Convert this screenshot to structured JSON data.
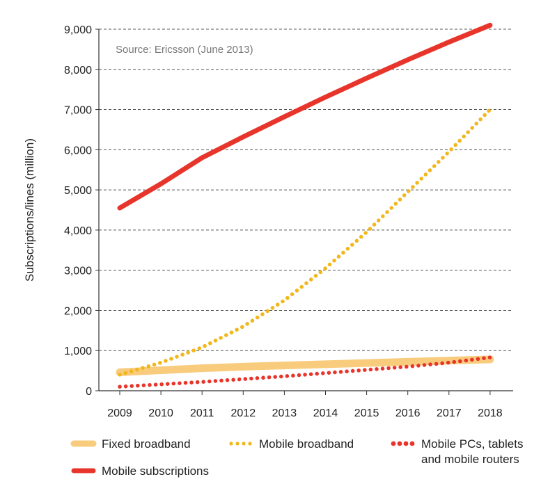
{
  "chart_data": {
    "type": "line",
    "source_note": "Source: Ericsson (June 2013)",
    "ylabel": "Subscriptions/lines (million)",
    "xlabel": "",
    "ylim": [
      0,
      9000
    ],
    "yticks": [
      0,
      1000,
      2000,
      3000,
      4000,
      5000,
      6000,
      7000,
      8000,
      9000
    ],
    "ytick_labels": [
      "0",
      "1,000",
      "2,000",
      "3,000",
      "4,000",
      "5,000",
      "6,000",
      "7,000",
      "8,000",
      "9,000"
    ],
    "categories": [
      "2009",
      "2010",
      "2011",
      "2012",
      "2013",
      "2014",
      "2015",
      "2016",
      "2017",
      "2018"
    ],
    "grid": "horizontal dashed",
    "series": [
      {
        "name": "Mobile subscriptions",
        "style": "solid",
        "color": "#e8352b",
        "values": [
          4550,
          5150,
          5800,
          6320,
          6820,
          7310,
          7780,
          8240,
          8680,
          9100
        ]
      },
      {
        "name": "Mobile broadband",
        "style": "dotted",
        "color": "#f2b71c",
        "values": [
          400,
          700,
          1080,
          1600,
          2250,
          3050,
          3950,
          4950,
          5950,
          7000
        ]
      },
      {
        "name": "Fixed broadband",
        "style": "band",
        "color": "#f8cc7c",
        "values": [
          460,
          510,
          560,
          600,
          630,
          660,
          690,
          720,
          750,
          780
        ]
      },
      {
        "name": "Mobile PCs, tablets and mobile routers",
        "label_lines": [
          "Mobile PCs, tablets",
          "and mobile routers"
        ],
        "style": "dotted",
        "color": "#e8352b",
        "values": [
          100,
          160,
          220,
          290,
          360,
          440,
          520,
          600,
          700,
          830
        ]
      }
    ],
    "legend_placement": "bottom"
  }
}
